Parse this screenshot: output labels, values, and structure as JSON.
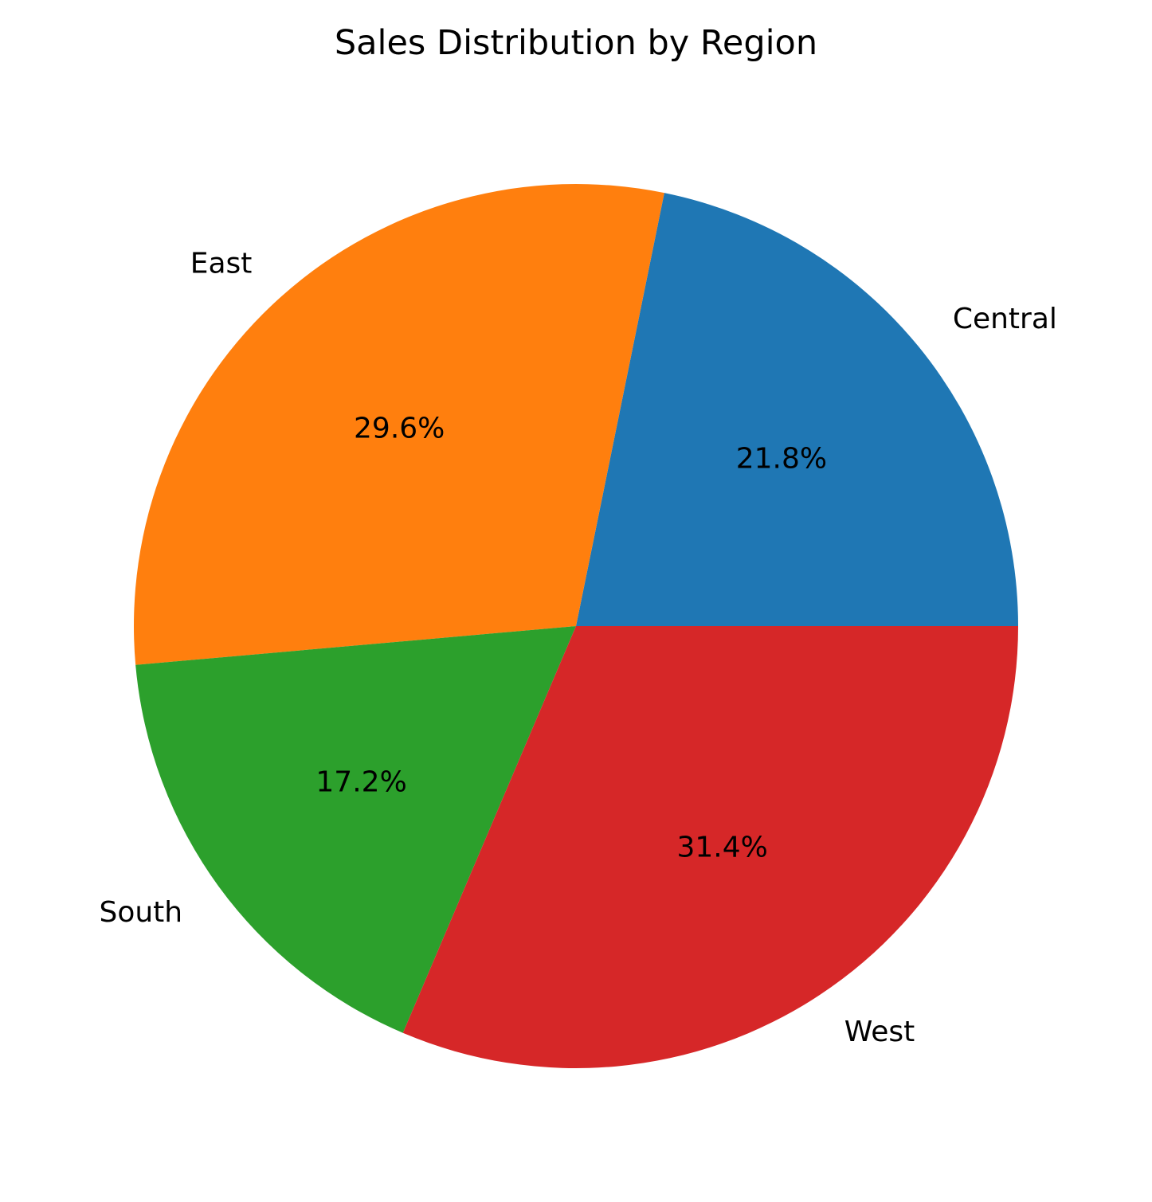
{
  "chart_data": {
    "type": "pie",
    "title": "Sales Distribution by Region",
    "categories": [
      "Central",
      "East",
      "South",
      "West"
    ],
    "values": [
      21.8,
      29.6,
      17.2,
      31.4
    ],
    "percent_labels": [
      "21.8%",
      "29.6%",
      "17.2%",
      "31.4%"
    ],
    "colors": [
      "#1f77b4",
      "#ff7f0e",
      "#2ca02c",
      "#d62728"
    ],
    "start_angle_deg": 0,
    "direction": "counterclockwise",
    "legend": "none"
  }
}
